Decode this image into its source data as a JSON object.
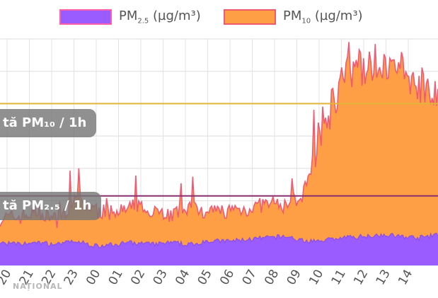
{
  "chart_data": {
    "type": "area",
    "legend": {
      "placement": "top-center"
    },
    "series": [
      {
        "name": "PM2.5 (µg/m³)",
        "legend_main": "PM",
        "legend_sub": "2.5",
        "legend_unit": " (µg/m³)",
        "color": "#9a5cff",
        "line_color": "#8a4ee8"
      },
      {
        "name": "PM10 (µg/m³)",
        "legend_main": "PM",
        "legend_sub": "10",
        "legend_unit": " (µg/m³)",
        "color": "#ff9f45",
        "line_color": "#f05a72"
      }
    ],
    "x_ticks": [
      "20",
      "21",
      "22",
      "23",
      "00",
      "01",
      "02",
      "03",
      "04",
      "05",
      "06",
      "07",
      "08",
      "09",
      "10",
      "11",
      "12",
      "13",
      "14"
    ],
    "ylim": [
      0,
      140
    ],
    "grid": true,
    "thresholds": [
      {
        "label_visible": "tă PM₁₀ / 1h",
        "value": 100,
        "color": "#e2b43a"
      },
      {
        "label_visible": "tă PM₂.₅ / 1h",
        "value": 43,
        "color": "#8a2f6e"
      }
    ],
    "pm10_hourly": [
      28,
      29,
      32,
      27,
      40,
      33,
      31,
      35,
      34,
      30,
      36,
      32,
      33,
      34,
      37,
      36,
      44,
      85,
      112,
      120,
      123,
      118,
      110,
      108
    ],
    "pm25_hourly": [
      14,
      13,
      14,
      13,
      15,
      12,
      13,
      14,
      13,
      14,
      13,
      15,
      15,
      16,
      17,
      18,
      15,
      16,
      17,
      18,
      19,
      18,
      17,
      19
    ]
  },
  "watermark": "NAȚIONAL"
}
